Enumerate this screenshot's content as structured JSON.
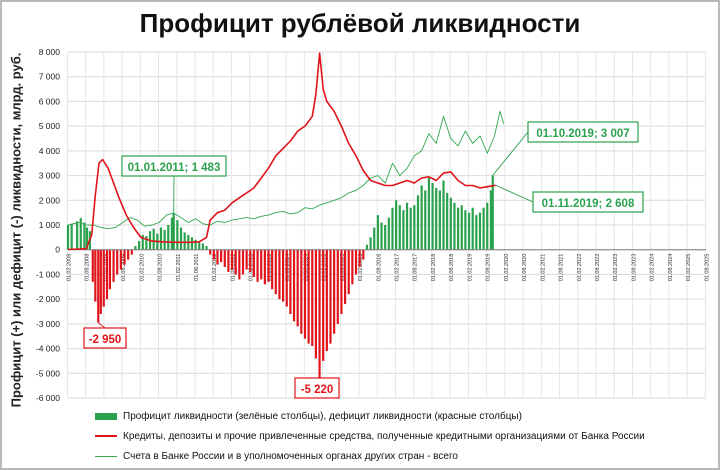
{
  "chart_data": {
    "type": "bar",
    "title": "Профицит рублёвой ликвидности",
    "ylabel": "Профицит (+) или дефицит (-) ликвидности, млрд. руб.",
    "ylim": [
      -6000,
      8000
    ],
    "yticks": [
      "8 000",
      "7 000",
      "6 000",
      "5 000",
      "4 000",
      "3 000",
      "2 000",
      "1 000",
      "0",
      "-1 000",
      "-2 000",
      "-3 000",
      "-4 000",
      "-5 000",
      "-6 000"
    ],
    "ytick_values": [
      8000,
      7000,
      6000,
      5000,
      4000,
      3000,
      2000,
      1000,
      0,
      -1000,
      -2000,
      -3000,
      -4000,
      -5000,
      -6000
    ],
    "xticks": [
      "01.02.2008",
      "01.08.2008",
      "01.02.2009",
      "01.08.2009",
      "01.02.2010",
      "01.08.2010",
      "01.02.2011",
      "01.08.2011",
      "01.02.2012",
      "01.08.2012",
      "01.02.2013",
      "01.08.2013",
      "01.02.2014",
      "01.08.2014",
      "01.02.2015",
      "01.08.2015",
      "01.02.2016",
      "01.08.2016",
      "01.02.2017",
      "01.08.2017",
      "01.02.2018",
      "01.08.2018",
      "01.02.2019",
      "01.08.2019",
      "01.02.2020",
      "01.08.2020",
      "01.02.2021",
      "01.08.2021",
      "01.02.2022",
      "01.08.2022",
      "01.02.2023",
      "01.08.2023",
      "01.02.2024",
      "01.08.2024",
      "01.02.2025",
      "01.08.2025"
    ],
    "x_start": 2008.1,
    "x_end": 2025.6,
    "grid": true,
    "legend_position": "bottom",
    "colors": {
      "surplus": "#2aa14d",
      "deficit": "#e0141a",
      "credit_line": "#e0141a",
      "accounts_line": "#31a84e"
    },
    "series": [
      {
        "name": "Профицит ликвидности (зелёные столбцы), дефицит ликвидности (красные столбцы)",
        "kind": "bar",
        "points": [
          [
            2008.1,
            1000
          ],
          [
            2008.2,
            1050
          ],
          [
            2008.35,
            1150
          ],
          [
            2008.45,
            1280
          ],
          [
            2008.55,
            1100
          ],
          [
            2008.62,
            900
          ],
          [
            2008.7,
            750
          ],
          [
            2008.78,
            -1300
          ],
          [
            2008.85,
            -2100
          ],
          [
            2008.93,
            -2950
          ],
          [
            2009.0,
            -2600
          ],
          [
            2009.08,
            -2300
          ],
          [
            2009.17,
            -2000
          ],
          [
            2009.25,
            -1600
          ],
          [
            2009.35,
            -1300
          ],
          [
            2009.45,
            -1000
          ],
          [
            2009.55,
            -800
          ],
          [
            2009.65,
            -600
          ],
          [
            2009.75,
            -400
          ],
          [
            2009.85,
            -200
          ],
          [
            2009.95,
            150
          ],
          [
            2010.05,
            350
          ],
          [
            2010.15,
            600
          ],
          [
            2010.25,
            550
          ],
          [
            2010.35,
            750
          ],
          [
            2010.45,
            850
          ],
          [
            2010.55,
            650
          ],
          [
            2010.65,
            900
          ],
          [
            2010.75,
            800
          ],
          [
            2010.85,
            1000
          ],
          [
            2010.95,
            1300
          ],
          [
            2011.0,
            1483
          ],
          [
            2011.1,
            1200
          ],
          [
            2011.2,
            900
          ],
          [
            2011.3,
            700
          ],
          [
            2011.4,
            600
          ],
          [
            2011.5,
            500
          ],
          [
            2011.6,
            400
          ],
          [
            2011.7,
            300
          ],
          [
            2011.8,
            250
          ],
          [
            2011.9,
            150
          ],
          [
            2012.0,
            -200
          ],
          [
            2012.1,
            -400
          ],
          [
            2012.2,
            -600
          ],
          [
            2012.3,
            -500
          ],
          [
            2012.4,
            -700
          ],
          [
            2012.5,
            -900
          ],
          [
            2012.6,
            -800
          ],
          [
            2012.7,
            -1000
          ],
          [
            2012.8,
            -1200
          ],
          [
            2012.9,
            -1000
          ],
          [
            2013.0,
            -800
          ],
          [
            2013.1,
            -900
          ],
          [
            2013.2,
            -1100
          ],
          [
            2013.3,
            -1300
          ],
          [
            2013.4,
            -1200
          ],
          [
            2013.5,
            -1400
          ],
          [
            2013.6,
            -1300
          ],
          [
            2013.7,
            -1600
          ],
          [
            2013.8,
            -1800
          ],
          [
            2013.9,
            -2000
          ],
          [
            2014.0,
            -2100
          ],
          [
            2014.1,
            -2300
          ],
          [
            2014.2,
            -2600
          ],
          [
            2014.3,
            -2900
          ],
          [
            2014.4,
            -3100
          ],
          [
            2014.5,
            -3400
          ],
          [
            2014.6,
            -3600
          ],
          [
            2014.7,
            -3800
          ],
          [
            2014.8,
            -3900
          ],
          [
            2014.9,
            -4400
          ],
          [
            2015.0,
            -5220
          ],
          [
            2015.1,
            -4500
          ],
          [
            2015.2,
            -4100
          ],
          [
            2015.3,
            -3800
          ],
          [
            2015.4,
            -3400
          ],
          [
            2015.5,
            -3000
          ],
          [
            2015.6,
            -2600
          ],
          [
            2015.7,
            -2200
          ],
          [
            2015.8,
            -1800
          ],
          [
            2015.9,
            -1400
          ],
          [
            2016.0,
            -1000
          ],
          [
            2016.1,
            -700
          ],
          [
            2016.2,
            -400
          ],
          [
            2016.3,
            200
          ],
          [
            2016.4,
            500
          ],
          [
            2016.5,
            900
          ],
          [
            2016.6,
            1400
          ],
          [
            2016.7,
            1100
          ],
          [
            2016.8,
            1000
          ],
          [
            2016.9,
            1300
          ],
          [
            2017.0,
            1700
          ],
          [
            2017.1,
            2000
          ],
          [
            2017.2,
            1800
          ],
          [
            2017.3,
            1600
          ],
          [
            2017.4,
            1900
          ],
          [
            2017.5,
            1700
          ],
          [
            2017.6,
            1800
          ],
          [
            2017.7,
            2200
          ],
          [
            2017.8,
            2600
          ],
          [
            2017.9,
            2400
          ],
          [
            2018.0,
            2900
          ],
          [
            2018.1,
            2700
          ],
          [
            2018.2,
            2500
          ],
          [
            2018.3,
            2400
          ],
          [
            2018.4,
            2800
          ],
          [
            2018.5,
            2300
          ],
          [
            2018.6,
            2100
          ],
          [
            2018.7,
            1900
          ],
          [
            2018.8,
            1700
          ],
          [
            2018.9,
            1800
          ],
          [
            2019.0,
            1600
          ],
          [
            2019.1,
            1500
          ],
          [
            2019.2,
            1700
          ],
          [
            2019.3,
            1400
          ],
          [
            2019.4,
            1500
          ],
          [
            2019.5,
            1700
          ],
          [
            2019.6,
            1900
          ],
          [
            2019.7,
            2400
          ],
          [
            2019.75,
            3007
          ]
        ]
      },
      {
        "name": "Кредиты, депозиты и прочие привлеченные средства, полученные кредитными организациями от Банка России",
        "kind": "line",
        "points": [
          [
            2008.1,
            10
          ],
          [
            2008.6,
            40
          ],
          [
            2008.75,
            600
          ],
          [
            2008.85,
            2200
          ],
          [
            2008.95,
            3500
          ],
          [
            2009.05,
            3650
          ],
          [
            2009.2,
            3300
          ],
          [
            2009.35,
            2700
          ],
          [
            2009.5,
            2100
          ],
          [
            2009.7,
            1400
          ],
          [
            2009.9,
            900
          ],
          [
            2010.1,
            500
          ],
          [
            2010.4,
            350
          ],
          [
            2010.7,
            320
          ],
          [
            2011.0,
            300
          ],
          [
            2011.4,
            300
          ],
          [
            2011.7,
            320
          ],
          [
            2011.9,
            500
          ],
          [
            2012.0,
            1200
          ],
          [
            2012.2,
            1500
          ],
          [
            2012.4,
            1600
          ],
          [
            2012.6,
            1900
          ],
          [
            2012.8,
            2100
          ],
          [
            2013.0,
            2300
          ],
          [
            2013.2,
            2500
          ],
          [
            2013.4,
            2900
          ],
          [
            2013.6,
            3300
          ],
          [
            2013.8,
            3800
          ],
          [
            2014.0,
            4100
          ],
          [
            2014.2,
            4400
          ],
          [
            2014.4,
            4800
          ],
          [
            2014.6,
            5000
          ],
          [
            2014.8,
            5400
          ],
          [
            2014.9,
            6300
          ],
          [
            2015.0,
            7950
          ],
          [
            2015.1,
            6500
          ],
          [
            2015.2,
            6000
          ],
          [
            2015.4,
            5600
          ],
          [
            2015.6,
            5000
          ],
          [
            2015.8,
            4300
          ],
          [
            2016.0,
            3800
          ],
          [
            2016.2,
            3200
          ],
          [
            2016.4,
            2800
          ],
          [
            2016.6,
            2700
          ],
          [
            2016.8,
            2600
          ],
          [
            2017.0,
            2600
          ],
          [
            2017.2,
            2700
          ],
          [
            2017.4,
            2800
          ],
          [
            2017.6,
            2700
          ],
          [
            2017.8,
            2900
          ],
          [
            2018.0,
            2950
          ],
          [
            2018.2,
            2800
          ],
          [
            2018.4,
            3100
          ],
          [
            2018.6,
            3150
          ],
          [
            2018.8,
            2800
          ],
          [
            2019.0,
            2600
          ],
          [
            2019.2,
            2600
          ],
          [
            2019.4,
            2500
          ],
          [
            2019.6,
            2550
          ],
          [
            2019.83,
            2608
          ]
        ]
      },
      {
        "name": "Счета в Банке России и в уполномоченных органах других стран - всего",
        "kind": "line",
        "points": [
          [
            2008.1,
            1000
          ],
          [
            2008.4,
            1100
          ],
          [
            2008.6,
            1000
          ],
          [
            2008.8,
            1000
          ],
          [
            2009.0,
            900
          ],
          [
            2009.2,
            850
          ],
          [
            2009.4,
            900
          ],
          [
            2009.6,
            1100
          ],
          [
            2009.8,
            1300
          ],
          [
            2010.0,
            1200
          ],
          [
            2010.2,
            950
          ],
          [
            2010.4,
            1000
          ],
          [
            2010.6,
            1100
          ],
          [
            2010.8,
            1400
          ],
          [
            2011.0,
            1483
          ],
          [
            2011.2,
            1300
          ],
          [
            2011.4,
            1100
          ],
          [
            2011.6,
            1250
          ],
          [
            2011.8,
            1050
          ],
          [
            2012.0,
            1000
          ],
          [
            2012.2,
            1150
          ],
          [
            2012.4,
            1100
          ],
          [
            2012.6,
            1200
          ],
          [
            2012.8,
            1250
          ],
          [
            2013.0,
            1300
          ],
          [
            2013.2,
            1250
          ],
          [
            2013.4,
            1350
          ],
          [
            2013.6,
            1400
          ],
          [
            2013.8,
            1500
          ],
          [
            2014.0,
            1550
          ],
          [
            2014.2,
            1450
          ],
          [
            2014.4,
            1500
          ],
          [
            2014.6,
            1700
          ],
          [
            2014.8,
            1650
          ],
          [
            2015.0,
            1800
          ],
          [
            2015.2,
            1900
          ],
          [
            2015.4,
            2000
          ],
          [
            2015.6,
            2100
          ],
          [
            2015.8,
            2300
          ],
          [
            2016.0,
            2400
          ],
          [
            2016.2,
            2600
          ],
          [
            2016.4,
            2900
          ],
          [
            2016.6,
            3000
          ],
          [
            2016.8,
            2700
          ],
          [
            2017.0,
            3500
          ],
          [
            2017.2,
            3000
          ],
          [
            2017.4,
            3300
          ],
          [
            2017.6,
            3800
          ],
          [
            2017.8,
            4000
          ],
          [
            2018.0,
            4700
          ],
          [
            2018.2,
            4300
          ],
          [
            2018.4,
            5400
          ],
          [
            2018.6,
            4500
          ],
          [
            2018.8,
            4200
          ],
          [
            2019.0,
            4800
          ],
          [
            2019.2,
            4300
          ],
          [
            2019.4,
            4600
          ],
          [
            2019.6,
            3900
          ],
          [
            2019.8,
            4600
          ],
          [
            2019.95,
            5600
          ],
          [
            2020.05,
            5100
          ]
        ]
      }
    ],
    "annotations": [
      {
        "label": "01.01.2011; 1 483",
        "x": 2011.0,
        "y": 1483,
        "color": "#2aa14d"
      },
      {
        "label": "01.10.2019; 3 007",
        "x": 2019.75,
        "y": 3007,
        "color": "#2aa14d"
      },
      {
        "label": "01.11.2019; 2 608",
        "x": 2019.83,
        "y": 2608,
        "color": "#2aa14d"
      },
      {
        "label": "-2 950",
        "x": 2008.93,
        "y": -2950,
        "color": "#e0141a"
      },
      {
        "label": "-5 220",
        "x": 2015.0,
        "y": -5220,
        "color": "#e0141a"
      }
    ]
  }
}
